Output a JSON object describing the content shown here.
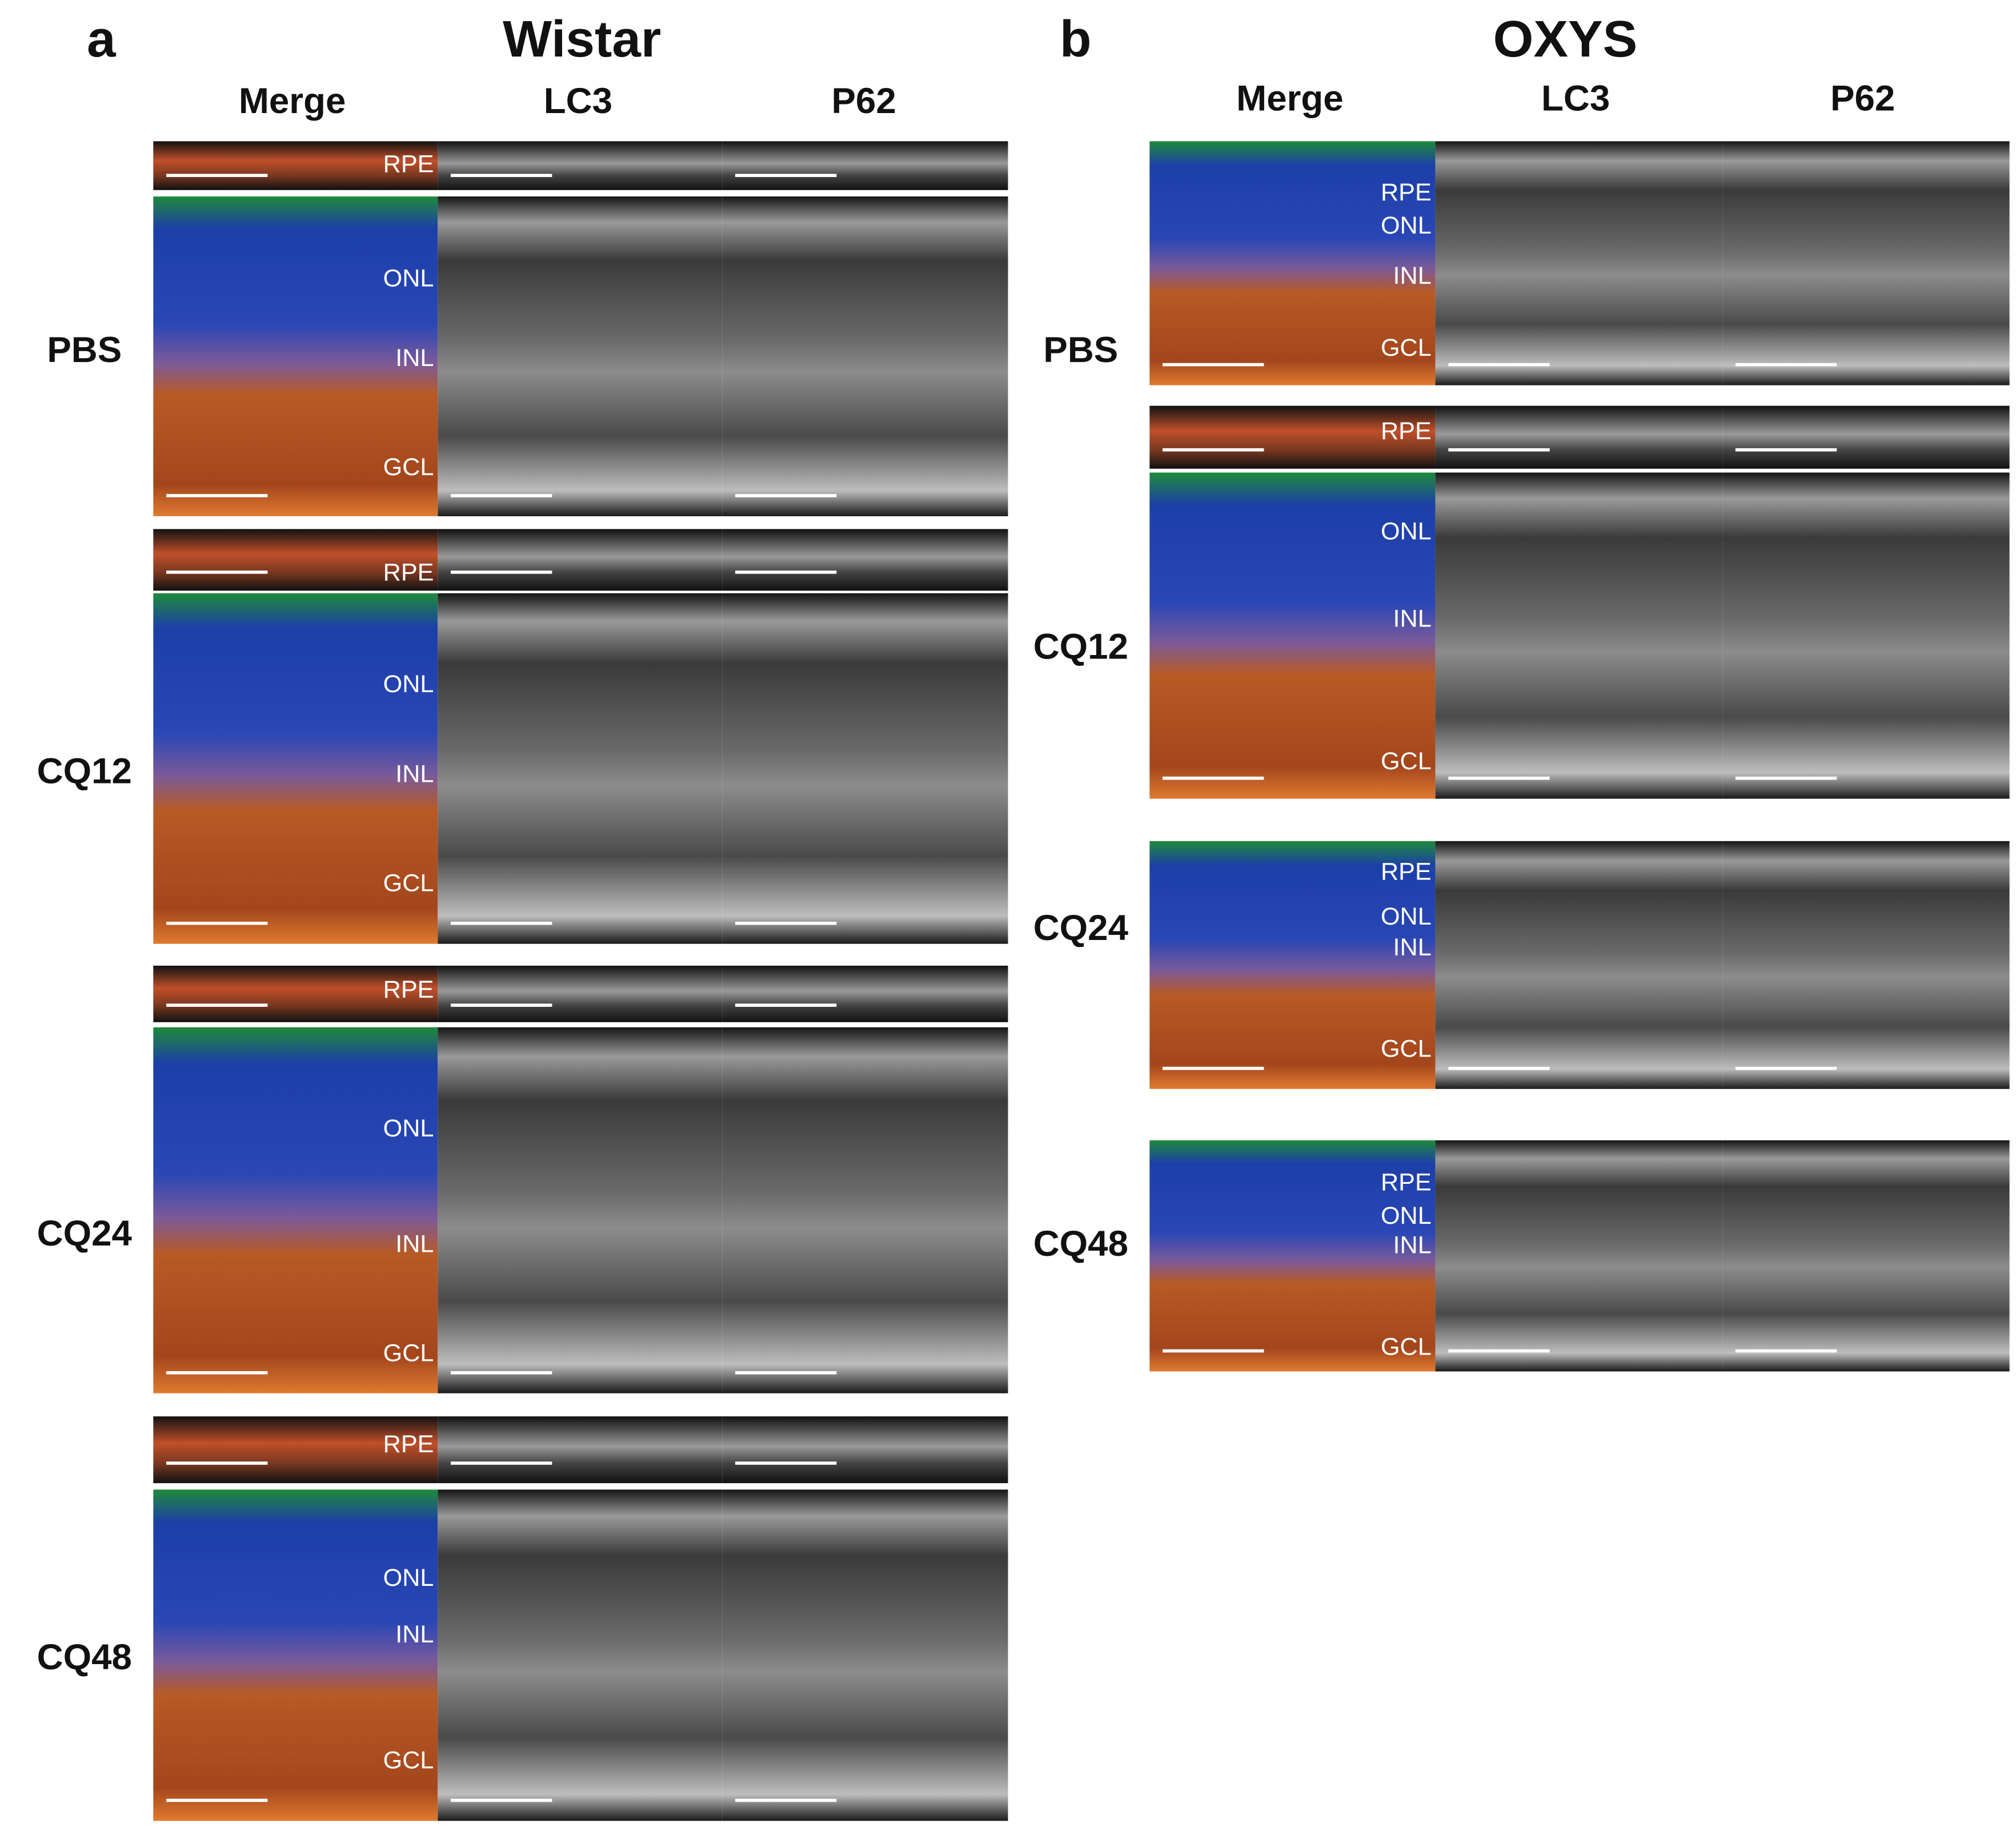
{
  "panels": [
    {
      "letter": "a",
      "title": "Wistar",
      "columns": [
        "Merge",
        "LC3",
        "P62"
      ],
      "rows": [
        {
          "label": "PBS",
          "layers": [
            "RPE",
            "ONL",
            "INL",
            "GCL"
          ]
        },
        {
          "label": "CQ12",
          "layers": [
            "RPE",
            "ONL",
            "INL",
            "GCL"
          ]
        },
        {
          "label": "CQ24",
          "layers": [
            "RPE",
            "ONL",
            "INL",
            "GCL"
          ]
        },
        {
          "label": "CQ48",
          "layers": [
            "RPE",
            "ONL",
            "INL",
            "GCL"
          ]
        }
      ]
    },
    {
      "letter": "b",
      "title": "OXYS",
      "columns": [
        "Merge",
        "LC3",
        "P62"
      ],
      "rows": [
        {
          "label": "PBS",
          "layers": [
            "RPE",
            "ONL",
            "INL",
            "GCL"
          ]
        },
        {
          "label": "CQ12",
          "layers": [
            "RPE",
            "ONL",
            "INL",
            "GCL"
          ]
        },
        {
          "label": "CQ24",
          "layers": [
            "RPE",
            "ONL",
            "INL",
            "GCL"
          ]
        },
        {
          "label": "CQ48",
          "layers": [
            "RPE",
            "ONL",
            "INL",
            "GCL"
          ]
        }
      ]
    }
  ]
}
